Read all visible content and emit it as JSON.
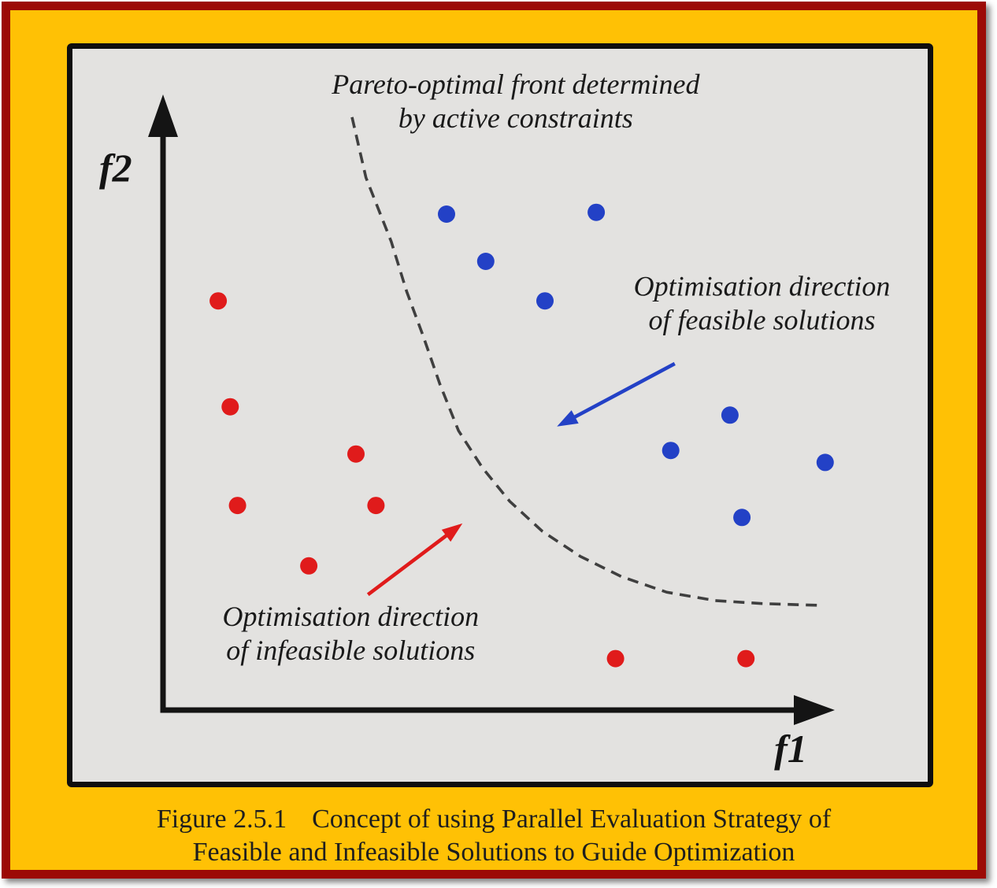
{
  "caption": {
    "figure_number": "Figure 2.5.1",
    "line1": "Concept of using Parallel Evaluation Strategy of",
    "line2": "Feasible and Infeasible Solutions to Guide Optimization"
  },
  "colors": {
    "page_background": "#FFC105",
    "frame_border": "#9C0A06",
    "panel_background": "#E3E2E0",
    "panel_border": "#0E0E0E",
    "axis": "#141414",
    "feasible": "#2341C6",
    "infeasible": "#E01B1B",
    "front_curve": "#3F3F3F",
    "annotation_text": "#1A1A1A"
  },
  "chart_data": {
    "type": "scatter",
    "title": "",
    "xlabel": "f1",
    "ylabel": "f2",
    "axis_ticks": "none",
    "grid": false,
    "xlim": [
      0,
      100
    ],
    "ylim": [
      0,
      100
    ],
    "series": [
      {
        "name": "feasible solutions",
        "color": "#2341C6",
        "points": [
          [
            42.6,
            82.9
          ],
          [
            65.1,
            83.2
          ],
          [
            48.5,
            75.0
          ],
          [
            57.4,
            68.4
          ],
          [
            85.2,
            49.3
          ],
          [
            76.3,
            43.4
          ],
          [
            99.5,
            41.4
          ],
          [
            87.0,
            32.2
          ]
        ]
      },
      {
        "name": "infeasible solutions",
        "color": "#E01B1B",
        "points": [
          [
            8.3,
            68.4
          ],
          [
            10.1,
            50.7
          ],
          [
            11.2,
            34.2
          ],
          [
            29.0,
            42.8
          ],
          [
            32.0,
            34.2
          ],
          [
            21.9,
            24.1
          ],
          [
            68.0,
            8.6
          ],
          [
            87.6,
            8.6
          ]
        ]
      }
    ],
    "pareto_front": {
      "style": "dashed",
      "color": "#3F3F3F",
      "points": [
        [
          28.4,
          99.1
        ],
        [
          30.5,
          89.0
        ],
        [
          34.3,
          78.3
        ],
        [
          36.6,
          70.0
        ],
        [
          39.1,
          62.5
        ],
        [
          41.6,
          54.5
        ],
        [
          44.4,
          46.7
        ],
        [
          48.0,
          40.5
        ],
        [
          52.1,
          34.9
        ],
        [
          57.0,
          29.9
        ],
        [
          62.7,
          25.7
        ],
        [
          68.9,
          22.3
        ],
        [
          75.7,
          19.7
        ],
        [
          83.0,
          18.3
        ],
        [
          90.0,
          17.8
        ],
        [
          98.8,
          17.5
        ]
      ]
    },
    "annotations": [
      {
        "id": "pareto-front-label",
        "lines": [
          "Pareto-optimal front determined",
          "by active constraints"
        ],
        "x": 53,
        "y": 103,
        "color": "#1A1A1A"
      },
      {
        "id": "feasible-direction-label",
        "lines": [
          "Optimisation direction",
          "of feasible solutions"
        ],
        "x": 90,
        "y": 69.3,
        "color": "#1A1A1A"
      },
      {
        "id": "infeasible-direction-label",
        "lines": [
          "Optimisation direction",
          "of infeasible solutions"
        ],
        "x": 28.2,
        "y": 14.1,
        "color": "#1A1A1A"
      }
    ],
    "arrows": [
      {
        "id": "feasible-direction-arrow",
        "color": "#2341C6",
        "from": [
          76.9,
          57.9
        ],
        "to": [
          59.2,
          47.4
        ]
      },
      {
        "id": "infeasible-direction-arrow",
        "color": "#E01B1B",
        "from": [
          30.8,
          19.3
        ],
        "to": [
          45.0,
          31.2
        ]
      }
    ]
  }
}
